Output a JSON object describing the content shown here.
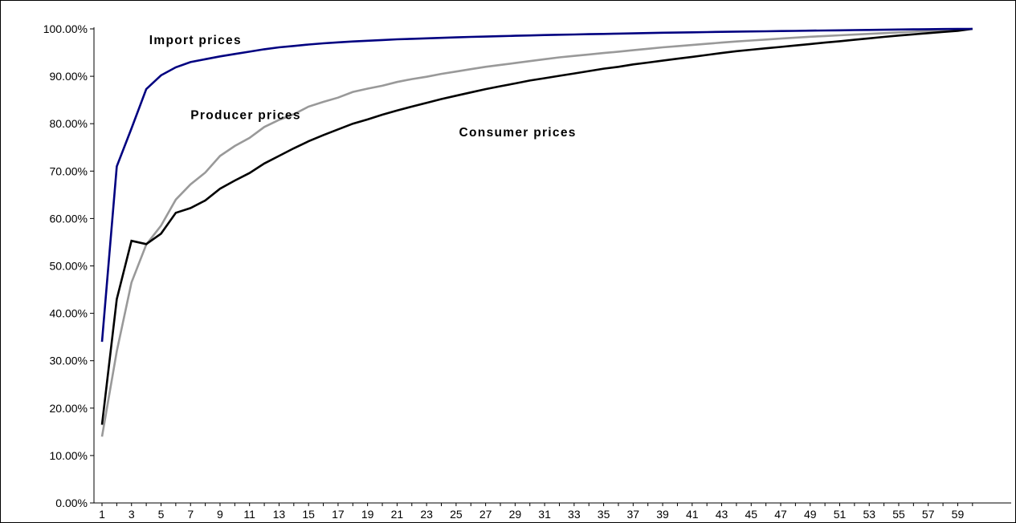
{
  "chart_data": {
    "type": "line",
    "title": "",
    "xlabel": "",
    "ylabel": "",
    "x": [
      1,
      2,
      3,
      4,
      5,
      6,
      7,
      8,
      9,
      10,
      11,
      12,
      13,
      14,
      15,
      16,
      17,
      18,
      19,
      20,
      21,
      22,
      23,
      24,
      25,
      26,
      27,
      28,
      29,
      30,
      31,
      32,
      33,
      34,
      35,
      36,
      37,
      38,
      39,
      40,
      41,
      42,
      43,
      44,
      45,
      46,
      47,
      48,
      49,
      50,
      51,
      52,
      53,
      54,
      55,
      56,
      57,
      58,
      59,
      60
    ],
    "x_tick_labels": [
      "1",
      "3",
      "5",
      "7",
      "9",
      "11",
      "13",
      "15",
      "17",
      "19",
      "21",
      "23",
      "25",
      "27",
      "29",
      "31",
      "33",
      "35",
      "37",
      "39",
      "41",
      "43",
      "45",
      "47",
      "49",
      "51",
      "53",
      "55",
      "57",
      "59"
    ],
    "y_tick_labels": [
      "0.00%",
      "10.00%",
      "20.00%",
      "30.00%",
      "40.00%",
      "50.00%",
      "60.00%",
      "70.00%",
      "80.00%",
      "90.00%",
      "100.00%"
    ],
    "ylim": [
      0,
      100
    ],
    "y_unit": "%",
    "grid": false,
    "legend": "none",
    "series": [
      {
        "name": "Import prices",
        "color": "#000080",
        "values": [
          34.0,
          71.0,
          79.0,
          87.3,
          90.2,
          91.9,
          93.0,
          93.6,
          94.2,
          94.7,
          95.2,
          95.7,
          96.1,
          96.4,
          96.7,
          96.95,
          97.15,
          97.35,
          97.5,
          97.65,
          97.8,
          97.9,
          98.0,
          98.1,
          98.2,
          98.3,
          98.38,
          98.46,
          98.54,
          98.62,
          98.7,
          98.76,
          98.82,
          98.88,
          98.94,
          99.0,
          99.06,
          99.12,
          99.18,
          99.23,
          99.28,
          99.33,
          99.38,
          99.42,
          99.46,
          99.5,
          99.54,
          99.58,
          99.62,
          99.66,
          99.7,
          99.74,
          99.78,
          99.82,
          99.86,
          99.9,
          99.93,
          99.96,
          99.98,
          100.0
        ]
      },
      {
        "name": "Producer prices",
        "color": "#999999",
        "values": [
          14.0,
          32.0,
          46.5,
          54.5,
          58.5,
          64.0,
          67.2,
          69.7,
          73.2,
          75.3,
          77.0,
          79.3,
          80.8,
          82.0,
          83.6,
          84.6,
          85.5,
          86.7,
          87.4,
          88.0,
          88.8,
          89.4,
          89.9,
          90.5,
          91.0,
          91.5,
          92.0,
          92.4,
          92.8,
          93.2,
          93.6,
          94.0,
          94.3,
          94.6,
          94.9,
          95.2,
          95.5,
          95.8,
          96.1,
          96.35,
          96.6,
          96.85,
          97.1,
          97.35,
          97.55,
          97.75,
          97.95,
          98.15,
          98.35,
          98.5,
          98.65,
          98.8,
          98.95,
          99.1,
          99.25,
          99.4,
          99.55,
          99.7,
          99.85,
          100.0
        ]
      },
      {
        "name": "Consumer prices",
        "color": "#000000",
        "values": [
          16.5,
          43.0,
          55.3,
          54.6,
          56.8,
          61.2,
          62.2,
          63.8,
          66.3,
          68.0,
          69.6,
          71.6,
          73.2,
          74.8,
          76.3,
          77.6,
          78.8,
          80.0,
          80.9,
          81.9,
          82.8,
          83.6,
          84.4,
          85.2,
          85.9,
          86.6,
          87.3,
          87.9,
          88.5,
          89.1,
          89.6,
          90.1,
          90.6,
          91.1,
          91.6,
          92.0,
          92.5,
          92.9,
          93.3,
          93.7,
          94.1,
          94.5,
          94.9,
          95.3,
          95.6,
          95.9,
          96.2,
          96.5,
          96.8,
          97.1,
          97.4,
          97.7,
          98.0,
          98.3,
          98.6,
          98.85,
          99.1,
          99.35,
          99.6,
          100.0
        ]
      }
    ]
  }
}
